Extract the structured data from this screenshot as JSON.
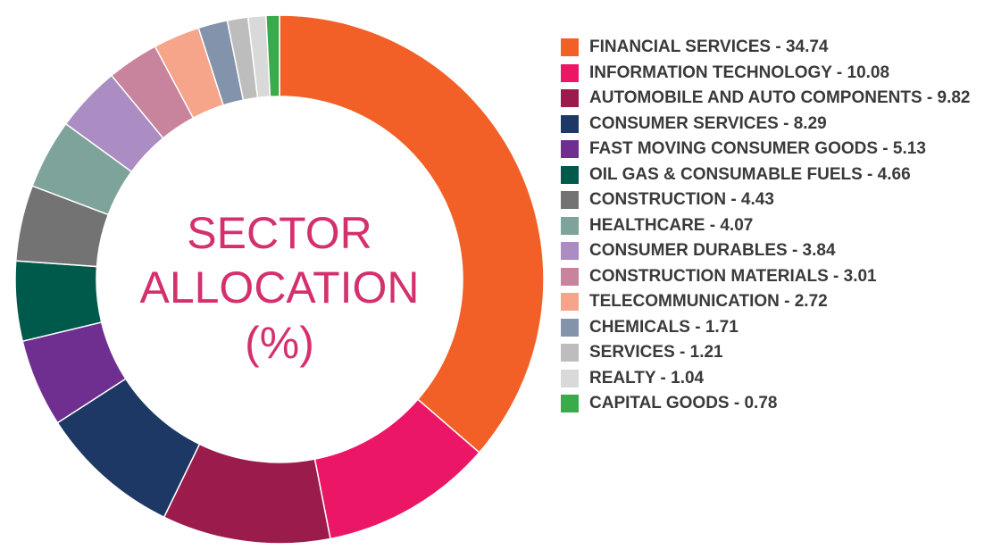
{
  "chart_data": {
    "type": "donut",
    "center_label": [
      "SECTOR",
      "ALLOCATION",
      "(%)"
    ],
    "center_color": "#d4306e",
    "categories": [
      "FINANCIAL SERVICES - 34.74",
      "INFORMATION TECHNOLOGY - 10.08",
      "AUTOMOBILE AND AUTO COMPONENTS - 9.82",
      "CONSUMER SERVICES - 8.29",
      "FAST MOVING CONSUMER GOODS - 5.13",
      "OIL GAS & CONSUMABLE FUELS - 4.66",
      "CONSTRUCTION - 4.43",
      "HEALTHCARE - 4.07",
      "CONSUMER DURABLES - 3.84",
      "CONSTRUCTION MATERIALS - 3.01",
      "TELECOMMUNICATION - 2.72",
      "CHEMICALS - 1.71",
      "SERVICES - 1.21",
      "REALTY - 1.04",
      "CAPITAL GOODS - 0.78"
    ],
    "values": [
      34.74,
      10.08,
      9.82,
      8.29,
      5.13,
      4.66,
      4.43,
      4.07,
      3.84,
      3.01,
      2.72,
      1.71,
      1.21,
      1.04,
      0.78
    ],
    "colors": [
      "#f26027",
      "#ec1667",
      "#9b1b4c",
      "#1d3864",
      "#6e2f91",
      "#005a4b",
      "#737373",
      "#7ea39a",
      "#ab8cc3",
      "#c8849c",
      "#f6a58b",
      "#8393ab",
      "#bdbdbd",
      "#d9d9d9",
      "#3aaa4a"
    ],
    "legend": "right"
  }
}
